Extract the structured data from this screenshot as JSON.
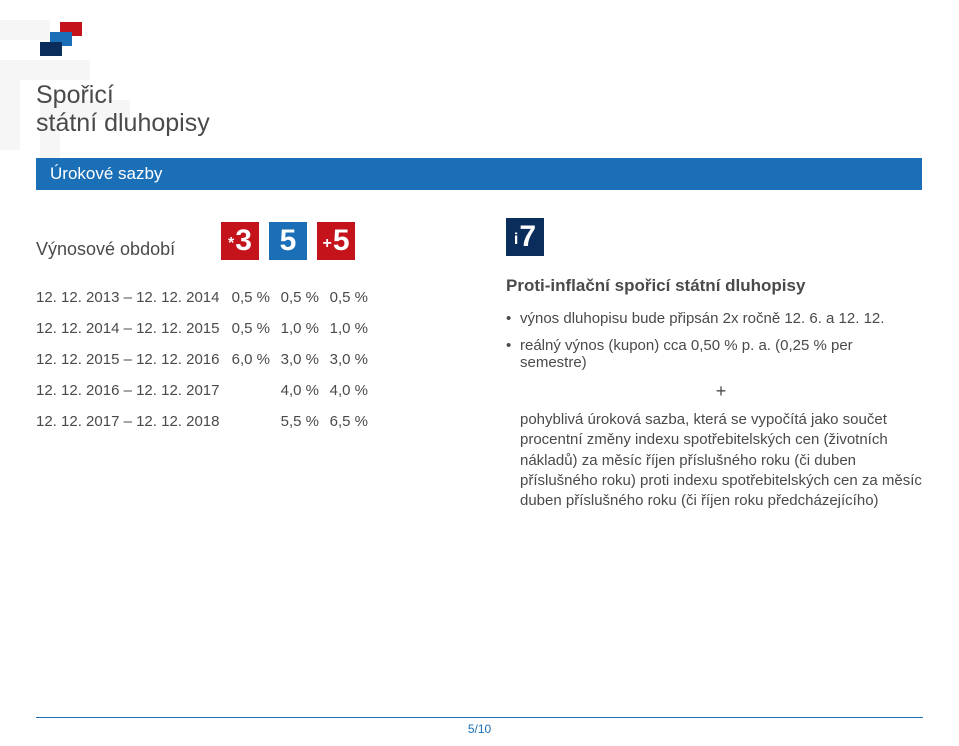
{
  "brand": {
    "line1": "Spořicí",
    "line2": "státní dluhopisy"
  },
  "colors": {
    "accent_blue": "#1b6fb6",
    "accent_red": "#c4131b",
    "accent_dark_blue": "#0b2d5c",
    "text": "#4a4a4a",
    "watermark": "#e7e7e7"
  },
  "section_title": "Úrokové sazby",
  "rates": {
    "period_label": "Výnosové období",
    "badges": [
      {
        "prefix": "*",
        "num": "3",
        "color": "#c4131b"
      },
      {
        "prefix": "",
        "num": "5",
        "color": "#1b6fb6"
      },
      {
        "prefix": "+",
        "num": "5",
        "color": "#c4131b"
      }
    ],
    "rows": [
      {
        "period": "12. 12. 2013 – 12. 12. 2014",
        "cells": [
          "0,5 %",
          "0,5 %",
          "0,5 %"
        ]
      },
      {
        "period": "12. 12. 2014 – 12. 12. 2015",
        "cells": [
          "0,5 %",
          "1,0 %",
          "1,0 %"
        ]
      },
      {
        "period": "12. 12. 2015 – 12. 12. 2016",
        "cells": [
          "6,0 %",
          "3,0 %",
          "3,0 %"
        ]
      },
      {
        "period": "12. 12. 2016 – 12. 12. 2017",
        "cells": [
          "",
          "4,0 %",
          "4,0 %"
        ]
      },
      {
        "period": "12. 12. 2017 – 12. 12. 2018",
        "cells": [
          "",
          "5,5 %",
          "6,5 %"
        ]
      }
    ]
  },
  "right": {
    "badge": {
      "prefix": "i",
      "num": "7",
      "color": "#0b2d5c"
    },
    "title": "Proti-inflační spořicí státní dluhopisy",
    "bullet1": "výnos dluhopisu bude připsán 2x ročně 12. 6. a 12. 12.",
    "bullet2": "reálný výnos (kupon) cca 0,50 % p. a. (0,25 % per semestre)",
    "plus": "+",
    "para": "pohyblivá úroková sazba, která se vypočítá jako součet procentní změny indexu spotřebitelských cen (životních nákladů) za měsíc říjen příslušného roku (či duben příslušného roku) proti indexu spotřebitelských cen za měsíc duben příslušného roku (či říjen roku předcházejícího)"
  },
  "pager": "5/10"
}
